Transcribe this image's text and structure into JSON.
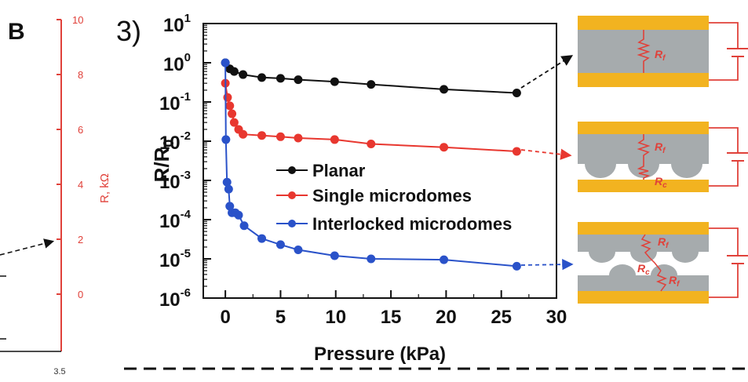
{
  "left_panel": {
    "letter": "B",
    "red_axis": {
      "label": "R, kΩ",
      "ticks": [
        "10",
        "8",
        "6",
        "4",
        "2",
        "0"
      ],
      "color": "#e0413a"
    },
    "bottom_tick": "3.5"
  },
  "right_panel": {
    "letter_fragment": "3)"
  },
  "chart_data": {
    "type": "line",
    "xlabel": "Pressure (kPa)",
    "ylabel": "R/R0",
    "xlim": [
      -2,
      30
    ],
    "ylim": [
      1e-06,
      10
    ],
    "y_scale": "log",
    "x_ticks": [
      "0",
      "5",
      "10",
      "15",
      "20",
      "25",
      "30"
    ],
    "y_ticks": [
      {
        "base": "10",
        "exp": "1"
      },
      {
        "base": "10",
        "exp": "0"
      },
      {
        "base": "10",
        "exp": "-1"
      },
      {
        "base": "10",
        "exp": "-2"
      },
      {
        "base": "10",
        "exp": "-3"
      },
      {
        "base": "10",
        "exp": "-4"
      },
      {
        "base": "10",
        "exp": "-5"
      },
      {
        "base": "10",
        "exp": "-6"
      }
    ],
    "legend_position": "center",
    "series": [
      {
        "name": "Planar",
        "color": "#111111",
        "x": [
          0,
          0.4,
          0.8,
          1.6,
          3.3,
          5,
          6.6,
          9.9,
          13.2,
          19.8,
          26.4
        ],
        "y": [
          1.0,
          0.7,
          0.6,
          0.5,
          0.42,
          0.4,
          0.37,
          0.33,
          0.28,
          0.21,
          0.17
        ]
      },
      {
        "name": "Single microdomes",
        "color": "#e8372f",
        "x": [
          0,
          0.2,
          0.4,
          0.6,
          0.8,
          1.2,
          1.6,
          3.3,
          5,
          6.6,
          9.9,
          13.2,
          19.8,
          26.4
        ],
        "y": [
          0.3,
          0.13,
          0.08,
          0.05,
          0.03,
          0.02,
          0.015,
          0.014,
          0.013,
          0.012,
          0.011,
          0.0085,
          0.007,
          0.0055
        ]
      },
      {
        "name": "Interlocked microdomes",
        "color": "#2a52c9",
        "x": [
          0,
          0.05,
          0.15,
          0.3,
          0.4,
          0.6,
          0.9,
          1.2,
          1.7,
          3.3,
          5,
          6.6,
          9.9,
          13.2,
          19.8,
          26.4
        ],
        "y": [
          1.0,
          0.011,
          0.0009,
          0.0006,
          0.00022,
          0.00015,
          0.00015,
          0.00013,
          7e-05,
          3.3e-05,
          2.3e-05,
          1.7e-05,
          1.2e-05,
          1e-05,
          9.5e-06,
          6.5e-06
        ]
      }
    ]
  },
  "schematics": [
    {
      "labels": [
        "R",
        "f"
      ]
    },
    {
      "labels": [
        "R",
        "f",
        "R",
        "c"
      ]
    },
    {
      "labels": [
        "R",
        "f",
        "R",
        "c",
        "R",
        "f"
      ]
    }
  ]
}
